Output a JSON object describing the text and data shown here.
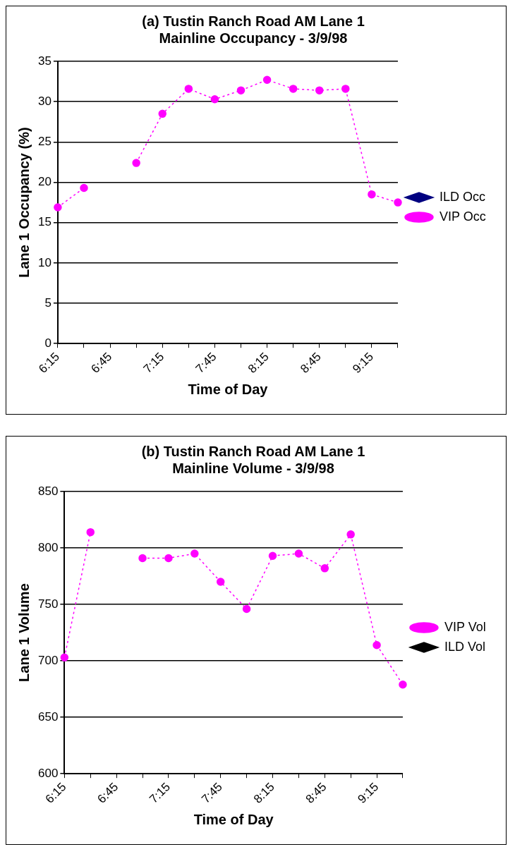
{
  "chart_data": [
    {
      "type": "line",
      "title": "(a) Tustin Ranch Road AM Lane 1\nMainline Occupancy - 3/9/98",
      "xlabel": "Time of Day",
      "ylabel": "Lane 1 Occupancy (%)",
      "categories": [
        "6:15",
        null,
        "6:45",
        null,
        "7:15",
        null,
        "7:45",
        null,
        "8:15",
        null,
        "8:45",
        null,
        "9:15",
        null
      ],
      "series": [
        {
          "name": "ILD Occ",
          "color": "#000080",
          "marker": "diamond",
          "line_style": "solid",
          "values": [
            null,
            null,
            null,
            null,
            null,
            null,
            null,
            null,
            null,
            null,
            null,
            null,
            null,
            null
          ]
        },
        {
          "name": "VIP Occ",
          "color": "#ff00ff",
          "marker": "circle",
          "line_style": "dotted",
          "values": [
            16.9,
            19.3,
            null,
            22.4,
            28.5,
            31.6,
            30.3,
            31.4,
            32.7,
            31.6,
            31.4,
            31.6,
            18.5,
            17.5
          ]
        }
      ],
      "ylim": [
        0,
        35
      ],
      "yticks": [
        0,
        5,
        10,
        15,
        20,
        25,
        30,
        35
      ],
      "grid": "y",
      "legend": "right"
    },
    {
      "type": "line",
      "title": "(b) Tustin Ranch Road AM Lane 1\nMainline Volume - 3/9/98",
      "xlabel": "Time of Day",
      "ylabel": "Lane 1 Volume",
      "categories": [
        "6:15",
        null,
        "6:45",
        null,
        "7:15",
        null,
        "7:45",
        null,
        "8:15",
        null,
        "8:45",
        null,
        "9:15",
        null
      ],
      "series": [
        {
          "name": "VIP Vol",
          "color": "#ff00ff",
          "marker": "circle",
          "line_style": "dotted",
          "values": [
            703,
            814,
            null,
            791,
            791,
            795,
            770,
            746,
            793,
            795,
            782,
            812,
            714,
            679
          ]
        },
        {
          "name": "ILD Vol",
          "color": "#000000",
          "marker": "diamond",
          "line_style": "solid",
          "values": [
            null,
            null,
            null,
            null,
            null,
            null,
            null,
            null,
            null,
            null,
            null,
            null,
            null,
            null
          ]
        }
      ],
      "ylim": [
        600,
        850
      ],
      "yticks": [
        600,
        650,
        700,
        750,
        800,
        850
      ],
      "grid": "y",
      "legend": "right"
    }
  ]
}
